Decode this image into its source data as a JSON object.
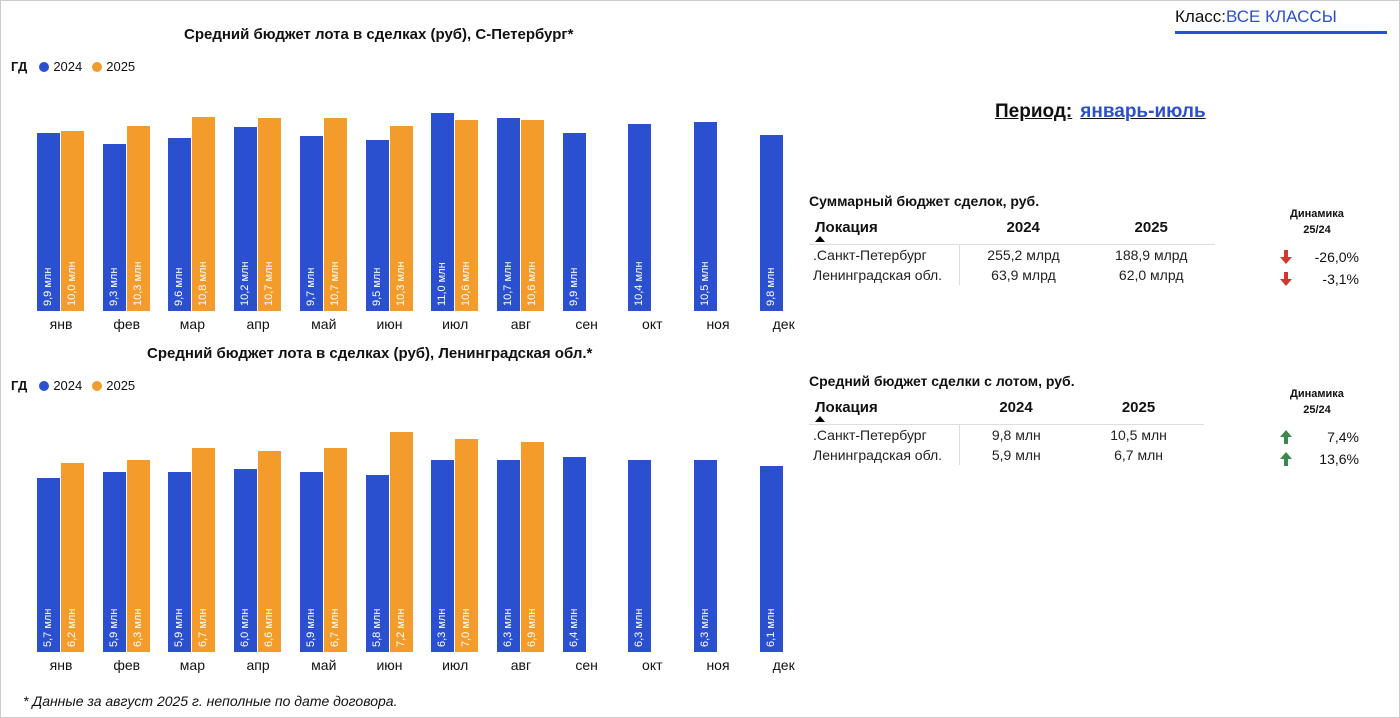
{
  "header": {
    "class_label": "Класс:",
    "class_value": "ВСЕ КЛАССЫ",
    "period_label": "Период:",
    "period_value": "январь-июль"
  },
  "colors": {
    "y2024": "#2a4fcf",
    "y2025": "#f39c2c",
    "down": "#d0382b",
    "up": "#3a8a4f"
  },
  "chart_data": [
    {
      "type": "bar",
      "title": "Средний бюджет  лота в сделках (руб), С-Петербург*",
      "legend_title": "ГД",
      "legend": [
        "2024",
        "2025"
      ],
      "categories": [
        "янв",
        "фев",
        "мар",
        "апр",
        "май",
        "июн",
        "июл",
        "авг",
        "сен",
        "окт",
        "ноя",
        "дек"
      ],
      "series": [
        {
          "name": "2024",
          "values": [
            9.9,
            9.3,
            9.6,
            10.2,
            9.7,
            9.5,
            11.0,
            10.7,
            9.9,
            10.4,
            10.5,
            9.8
          ],
          "labels": [
            "9,9 млн",
            "9,3 млн",
            "9,6 млн",
            "10,2 млн",
            "9,7 млн",
            "9,5 млн",
            "11,0 млн",
            "10,7 млн",
            "9,9 млн",
            "10,4 млн",
            "10,5 млн",
            "9,8 млн"
          ]
        },
        {
          "name": "2025",
          "values": [
            10.0,
            10.3,
            10.8,
            10.7,
            10.7,
            10.3,
            10.6,
            10.6,
            null,
            null,
            null,
            null
          ],
          "labels": [
            "10,0 млн",
            "10,3 млн",
            "10,8 млн",
            "10,7 млн",
            "10,7 млн",
            "10,3 млн",
            "10,6 млн",
            "10,6 млн",
            null,
            null,
            null,
            null
          ]
        }
      ],
      "unit": "млн"
    },
    {
      "type": "bar",
      "title": "Средний бюджет  лота в сделках (руб), Ленинградская обл.*",
      "legend_title": "ГД",
      "legend": [
        "2024",
        "2025"
      ],
      "categories": [
        "янв",
        "фев",
        "мар",
        "апр",
        "май",
        "июн",
        "июл",
        "авг",
        "сен",
        "окт",
        "ноя",
        "дек"
      ],
      "series": [
        {
          "name": "2024",
          "values": [
            5.7,
            5.9,
            5.9,
            6.0,
            5.9,
            5.8,
            6.3,
            6.3,
            6.4,
            6.3,
            6.3,
            6.1
          ],
          "labels": [
            "5,7 млн",
            "5,9 млн",
            "5,9 млн",
            "6,0 млн",
            "5,9 млн",
            "5,8 млн",
            "6,3 млн",
            "6,3 млн",
            "6,4 млн",
            "6,3 млн",
            "6,3 млн",
            "6,1 млн"
          ]
        },
        {
          "name": "2025",
          "values": [
            6.2,
            6.3,
            6.7,
            6.6,
            6.7,
            7.2,
            7.0,
            6.9,
            null,
            null,
            null,
            null
          ],
          "labels": [
            "6,2 млн",
            "6,3 млн",
            "6,7 млн",
            "6,6 млн",
            "6,7 млн",
            "7,2 млн",
            "7,0 млн",
            "6,9 млн",
            null,
            null,
            null,
            null
          ]
        }
      ],
      "unit": "млн"
    }
  ],
  "tables": [
    {
      "title": "Суммарный бюджет сделок, руб.",
      "headers": [
        "Локация",
        "2024",
        "2025"
      ],
      "dyn_header": [
        "Динамика",
        "25/24"
      ],
      "rows": [
        {
          "loc": ".Санкт-Петербург",
          "v2024": "255,2 млрд",
          "v2025": "188,9 млрд",
          "dyn": "-26,0%",
          "dir": "down"
        },
        {
          "loc": "Ленинградская обл.",
          "v2024": "63,9 млрд",
          "v2025": "62,0 млрд",
          "dyn": "-3,1%",
          "dir": "down"
        }
      ]
    },
    {
      "title": "Средний бюджет сделки с лотом, руб.",
      "headers": [
        "Локация",
        "2024",
        "2025"
      ],
      "dyn_header": [
        "Динамика",
        "25/24"
      ],
      "rows": [
        {
          "loc": ".Санкт-Петербург",
          "v2024": "9,8 млн",
          "v2025": "10,5 млн",
          "dyn": "7,4%",
          "dir": "up"
        },
        {
          "loc": "Ленинградская обл.",
          "v2024": "5,9 млн",
          "v2025": "6,7 млн",
          "dyn": "13,6%",
          "dir": "up"
        }
      ]
    }
  ],
  "footnote": "* Данные за август 2025 г. неполные по дате договора."
}
